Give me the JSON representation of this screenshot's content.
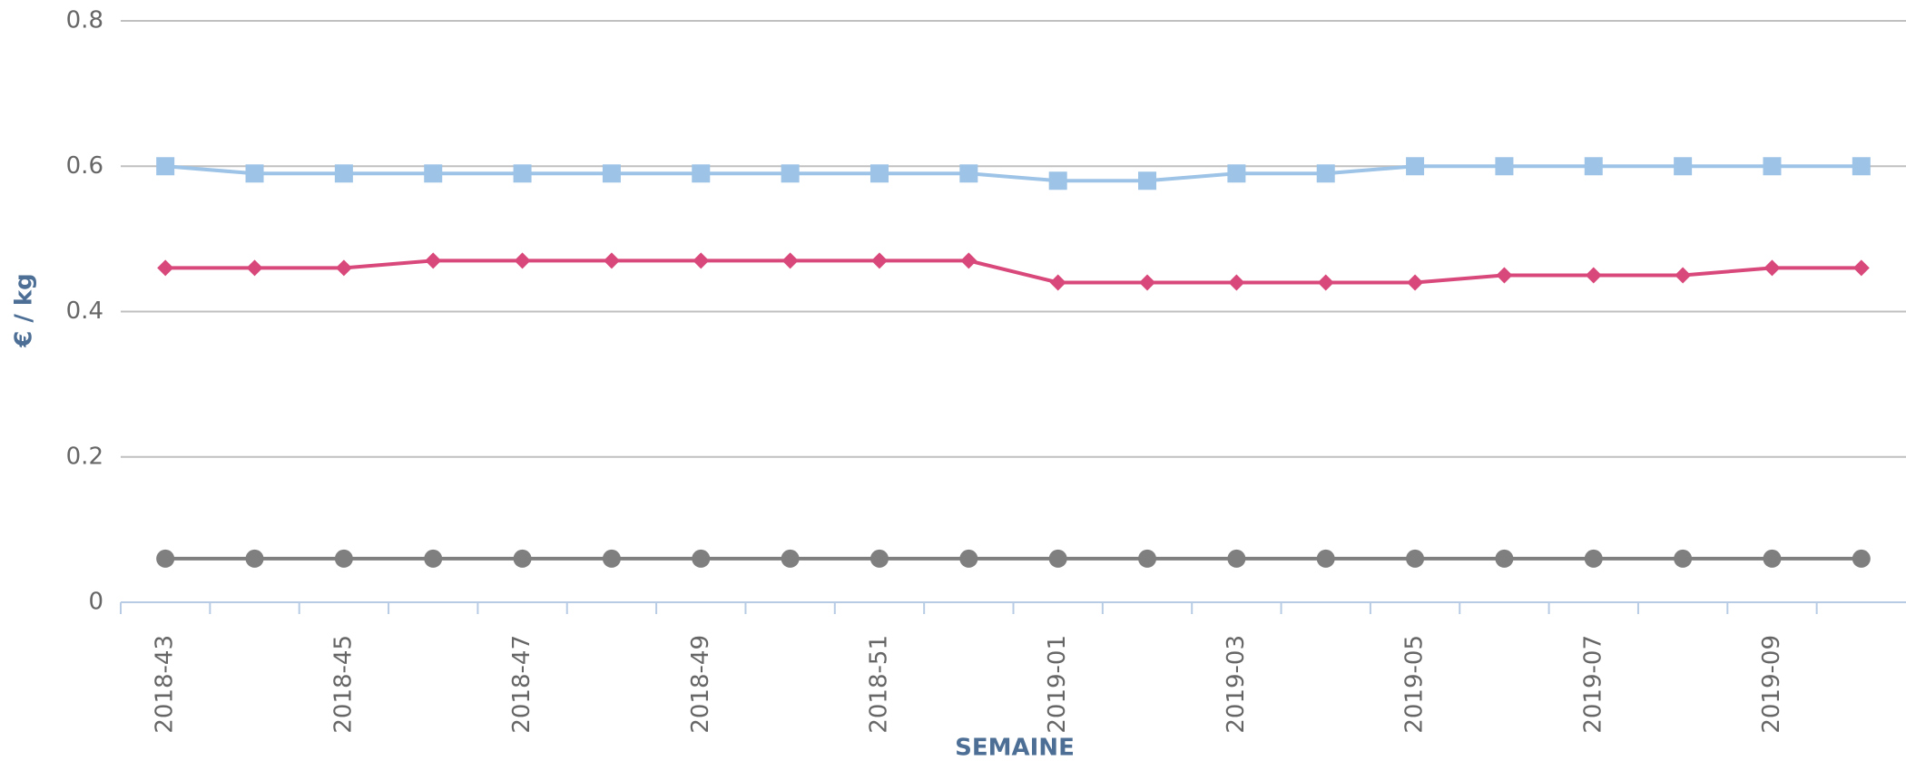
{
  "chart_data": {
    "type": "line",
    "x_label": "SEMAINE",
    "y_label": "€ / kg",
    "categories": [
      "2018-43",
      null,
      "2018-45",
      null,
      "2018-47",
      null,
      "2018-49",
      null,
      "2018-51",
      null,
      "2019-01",
      null,
      "2019-03",
      null,
      "2019-05",
      null,
      "2019-07",
      null,
      "2019-09",
      null
    ],
    "series": [
      {
        "color": "#9dc3e6",
        "marker": "square",
        "values": [
          0.6,
          0.59,
          0.59,
          0.59,
          0.59,
          0.59,
          0.59,
          0.59,
          0.59,
          0.59,
          0.58,
          0.58,
          0.59,
          0.59,
          0.6,
          0.6,
          0.6,
          0.6,
          0.6,
          0.6
        ]
      },
      {
        "color": "#d9487a",
        "marker": "diamond",
        "values": [
          0.46,
          0.46,
          0.46,
          0.47,
          0.47,
          0.47,
          0.47,
          0.47,
          0.47,
          0.47,
          0.44,
          0.44,
          0.44,
          0.44,
          0.44,
          0.45,
          0.45,
          0.45,
          0.46,
          0.46
        ]
      },
      {
        "color": "#7f7f7f",
        "marker": "circle",
        "values": [
          0.06,
          0.06,
          0.06,
          0.06,
          0.06,
          0.06,
          0.06,
          0.06,
          0.06,
          0.06,
          0.06,
          0.06,
          0.06,
          0.06,
          0.06,
          0.06,
          0.06,
          0.06,
          0.06,
          0.06
        ]
      }
    ],
    "ylim": [
      0,
      0.8
    ],
    "yticks": [
      0,
      0.2,
      0.4,
      0.6,
      0.8
    ],
    "grid": true
  }
}
